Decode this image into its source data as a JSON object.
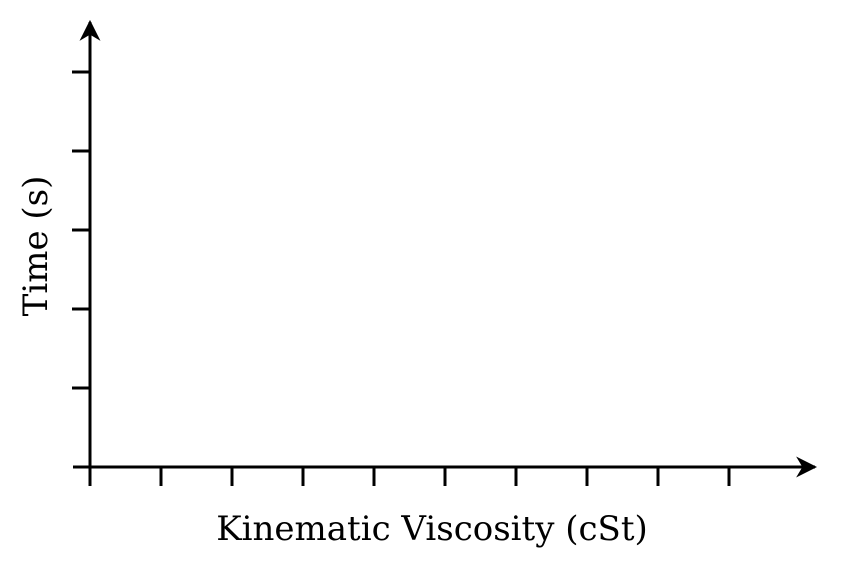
{
  "chart_data": {
    "type": "line",
    "title": "",
    "xlabel": "Kinematic Viscosity (cSt)",
    "ylabel": "Time (s)",
    "x_tick_count": 10,
    "y_tick_count": 5,
    "series": [],
    "grid": false,
    "legend": "none"
  }
}
